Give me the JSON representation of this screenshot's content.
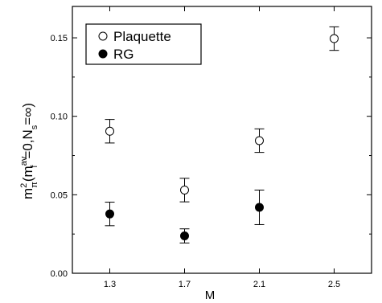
{
  "chart_data": {
    "type": "scatter",
    "title": "",
    "xlabel": "M",
    "ylabel": {
      "base": "m",
      "sub1": "π",
      "sup1": "2",
      "open": "(m",
      "sub2": "f",
      "sup2": "av",
      "mid": "=0,N",
      "sub3": "s",
      "end": "=∞)"
    },
    "xlim": [
      1.1,
      2.7
    ],
    "ylim": [
      0.0,
      0.17
    ],
    "x_ticks": [
      "1.3",
      "1.7",
      "2.1",
      "2.5"
    ],
    "y_ticks": [
      "0.00",
      "0.05",
      "0.10",
      "0.15"
    ],
    "grid": false,
    "legend_position": "top-left",
    "series": [
      {
        "name": "Plaquette",
        "marker": "open-circle",
        "points": [
          {
            "x": 1.3,
            "y": 0.0905,
            "err": 0.0075
          },
          {
            "x": 1.7,
            "y": 0.053,
            "err": 0.0075
          },
          {
            "x": 2.1,
            "y": 0.0845,
            "err": 0.0075
          },
          {
            "x": 2.5,
            "y": 0.1495,
            "err": 0.0075
          }
        ]
      },
      {
        "name": "RG",
        "marker": "filled-circle",
        "points": [
          {
            "x": 1.3,
            "y": 0.0378,
            "err": 0.0075
          },
          {
            "x": 1.7,
            "y": 0.0238,
            "err": 0.0045
          },
          {
            "x": 2.1,
            "y": 0.042,
            "err": 0.011
          }
        ]
      }
    ]
  }
}
